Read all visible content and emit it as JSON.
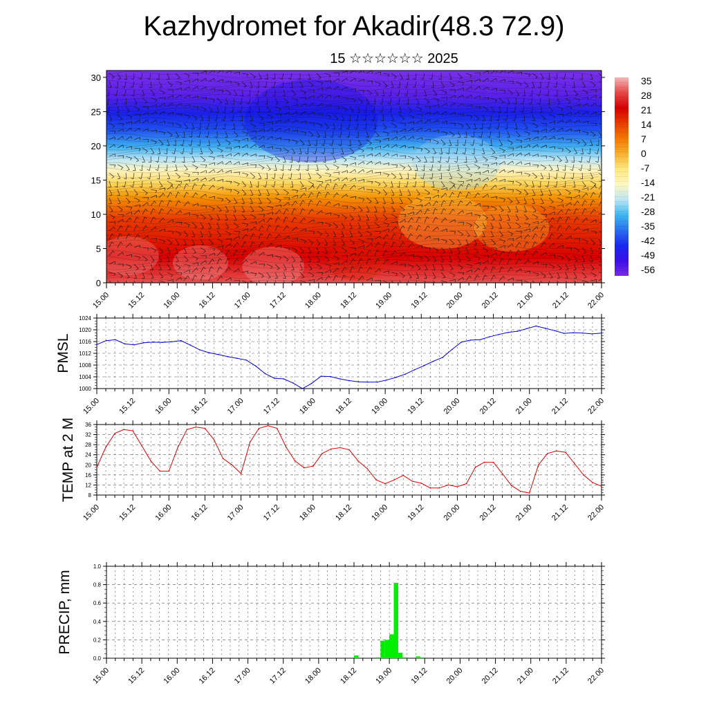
{
  "header": {
    "title": "Kazhydromet for Akadir(48.3 72.9)",
    "subtitle": "15 ☆☆☆☆☆☆ 2025"
  },
  "time_labels": [
    "15.00",
    "15.12",
    "16.00",
    "16.12",
    "17.00",
    "17.12",
    "18.00",
    "18.12",
    "19.00",
    "19.12",
    "20.00",
    "20.12",
    "21.00",
    "21.12",
    "22.00"
  ],
  "chart_data": [
    {
      "id": "crosssection",
      "type": "heatmap",
      "title": "",
      "ylabel": "",
      "ylim": [
        0,
        31
      ],
      "yticks": [
        0,
        5,
        10,
        15,
        20,
        25,
        30
      ],
      "colorbar": {
        "labels": [
          "35",
          "28",
          "21",
          "14",
          "7",
          "0",
          "-7",
          "-14",
          "-21",
          "-28",
          "-35",
          "-42",
          "-49",
          "-56"
        ],
        "colors": [
          "#f4b8b8",
          "#e84848",
          "#d40000",
          "#e83c00",
          "#f47800",
          "#f8b030",
          "#fce880",
          "#fff8c0",
          "#bfe6f4",
          "#40b8f0",
          "#2a70f0",
          "#1a2af0",
          "#3a10e8",
          "#7a28e8"
        ]
      },
      "note_overlay": "wind barbs"
    },
    {
      "id": "pmsl",
      "type": "line",
      "ylabel": "PMSL",
      "ylim": [
        1000,
        1024
      ],
      "yticks": [
        "1000",
        "1004",
        "1008",
        "1012",
        "1016",
        "1020",
        "1024"
      ],
      "color": "#0000cc",
      "values": [
        1015,
        1016.3,
        1016.6,
        1015.2,
        1014.9,
        1015.6,
        1015.8,
        1015.7,
        1015.9,
        1016.3,
        1014.8,
        1013.2,
        1012.2,
        1011.6,
        1010.9,
        1010.3,
        1009.7,
        1007.7,
        1005.1,
        1003.5,
        1003.3,
        1001.9,
        1000,
        1001.8,
        1004.2,
        1004.1,
        1003.3,
        1002.7,
        1002.3,
        1002.2,
        1002.2,
        1002.9,
        1003.8,
        1004.9,
        1006.4,
        1007.8,
        1009.3,
        1010.6,
        1013.3,
        1015.8,
        1016.5,
        1016.6,
        1017.6,
        1018.4,
        1019.1,
        1019.5,
        1020.4,
        1021.3,
        1020.5,
        1019.7,
        1018.8,
        1019,
        1018.9,
        1018.6,
        1018.9
      ]
    },
    {
      "id": "temp",
      "type": "line",
      "ylabel": "TEMP at 2 M",
      "ylim": [
        8,
        36
      ],
      "yticks": [
        "8",
        "12",
        "16",
        "20",
        "24",
        "28",
        "32",
        "36"
      ],
      "color": "#dd0000",
      "values": [
        19,
        27,
        32.5,
        34,
        33.5,
        27.5,
        21.5,
        17.5,
        17.5,
        27,
        34,
        35,
        34.5,
        30,
        22.5,
        20,
        16.5,
        29,
        34.5,
        35.5,
        34.5,
        27,
        21.5,
        18.8,
        19.5,
        24.5,
        26.3,
        26.8,
        26,
        21.5,
        18.5,
        14,
        12.5,
        14,
        15.8,
        13.5,
        12.7,
        10.8,
        10.8,
        12,
        11.3,
        12.5,
        19,
        21,
        21,
        16.5,
        11.8,
        9.5,
        8.8,
        20,
        24.5,
        25.5,
        25,
        20.5,
        16,
        13,
        11.5
      ]
    },
    {
      "id": "precip",
      "type": "bar",
      "ylabel": "PRECIP, mm",
      "ylim": [
        0,
        1.0
      ],
      "yticks": [
        "0.0",
        "0.2",
        "0.4",
        "0.6",
        "0.8",
        "1.0"
      ],
      "color": "#00ee00",
      "values": [
        0,
        0,
        0,
        0,
        0,
        0,
        0,
        0,
        0,
        0,
        0,
        0,
        0,
        0,
        0,
        0,
        0,
        0,
        0,
        0,
        0,
        0,
        0,
        0,
        0,
        0,
        0,
        0,
        0,
        0,
        0,
        0,
        0,
        0,
        0,
        0,
        0,
        0,
        0,
        0,
        0,
        0,
        0,
        0,
        0,
        0,
        0,
        0,
        0,
        0,
        0,
        0,
        0,
        0,
        0,
        0,
        0.03,
        0,
        0,
        0,
        0,
        0.01,
        0.19,
        0.2,
        0.26,
        0.82,
        0.06,
        0.01,
        0,
        0,
        0.02,
        0.01,
        0,
        0,
        0,
        0,
        0,
        0,
        0,
        0,
        0,
        0,
        0,
        0,
        0,
        0,
        0,
        0,
        0,
        0,
        0,
        0,
        0,
        0,
        0,
        0,
        0,
        0,
        0,
        0,
        0,
        0,
        0,
        0,
        0,
        0,
        0,
        0,
        0,
        0,
        0,
        0
      ]
    }
  ]
}
